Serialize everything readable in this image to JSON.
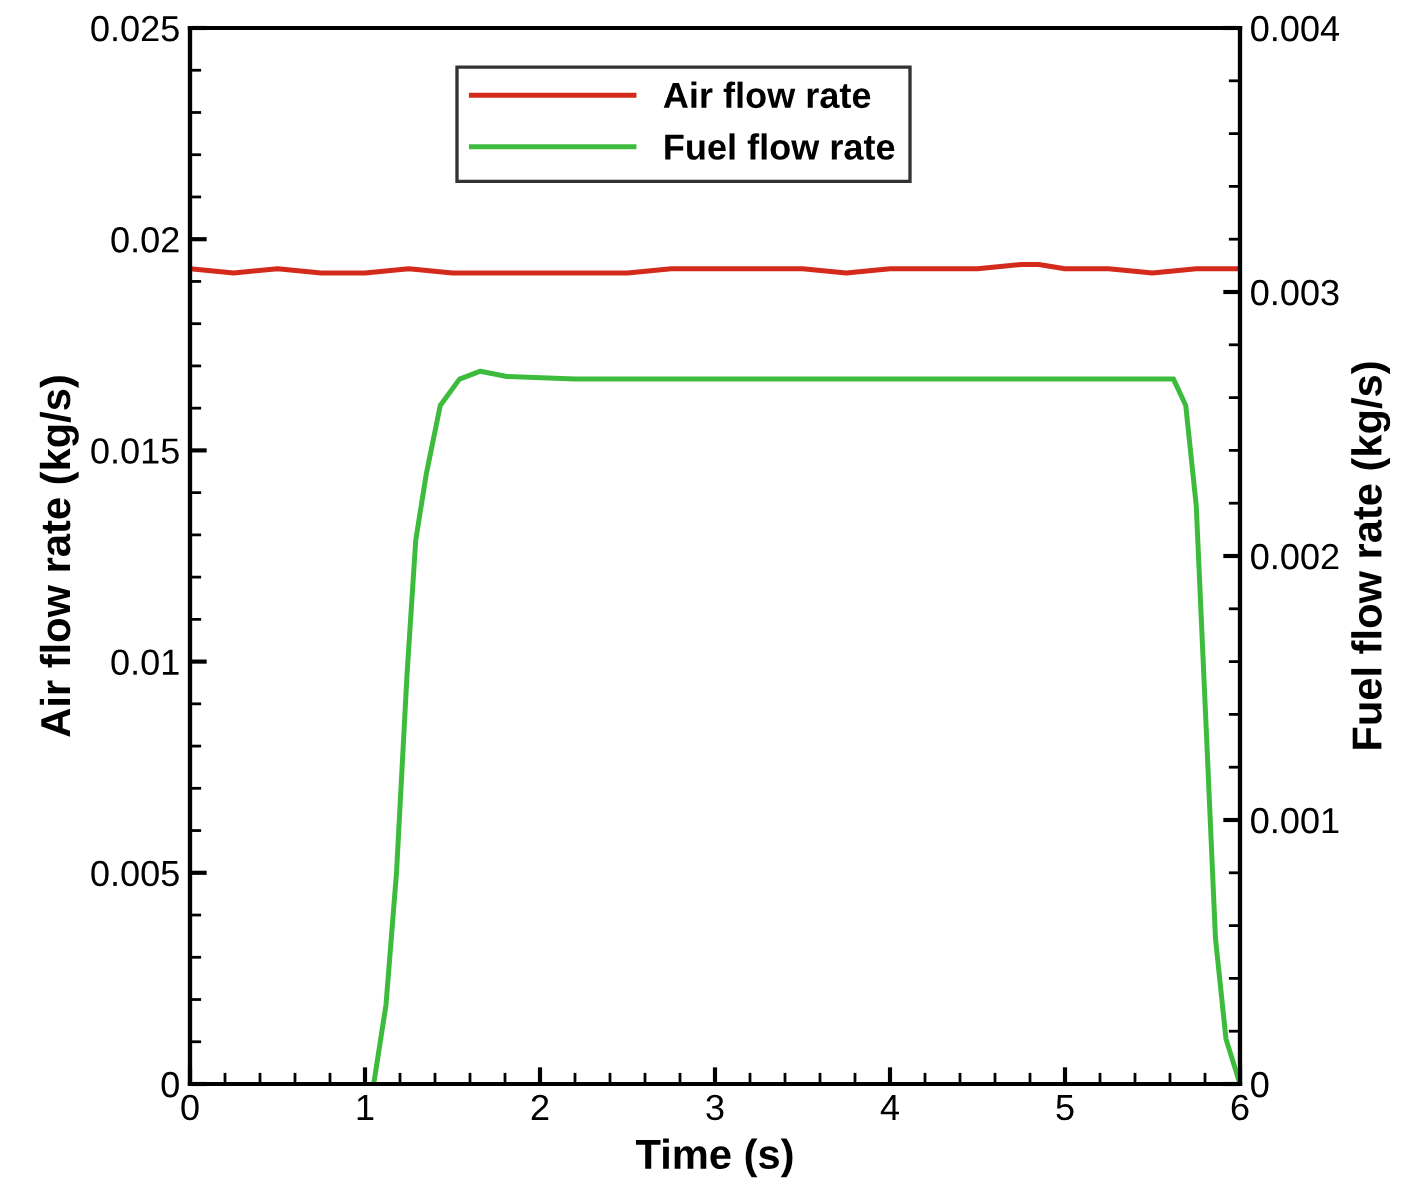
{
  "chart_data": {
    "type": "line",
    "xlabel": "Time (s)",
    "ylabel": "Air flow rate (kg/s)",
    "y2label": "Fuel flow rate (kg/s)",
    "xlim": [
      0,
      6
    ],
    "xticks": [
      0,
      1,
      2,
      3,
      4,
      5,
      6
    ],
    "ylim": [
      0,
      0.025
    ],
    "yticks": [
      0,
      0.005,
      0.01,
      0.015,
      0.02,
      0.025
    ],
    "y2lim": [
      0,
      0.004
    ],
    "y2ticks": [
      0,
      0.001,
      0.002,
      0.003,
      0.004
    ],
    "legend": "top",
    "grid": false,
    "marker": "none",
    "line_style": "solid",
    "series": [
      {
        "name": "Air flow rate",
        "color": "#d42a1c",
        "x": [
          0,
          0.25,
          0.5,
          0.75,
          1,
          1.25,
          1.5,
          1.75,
          2,
          2.25,
          2.5,
          2.75,
          3,
          3.25,
          3.5,
          3.75,
          4,
          4.25,
          4.5,
          4.75,
          4.85,
          5,
          5.25,
          5.5,
          5.75,
          6
        ],
        "values": [
          0.0193,
          0.0192,
          0.0193,
          0.0192,
          0.0192,
          0.0193,
          0.0192,
          0.0192,
          0.0192,
          0.0192,
          0.0192,
          0.0193,
          0.0193,
          0.0193,
          0.0193,
          0.0192,
          0.0193,
          0.0193,
          0.0193,
          0.0194,
          0.0194,
          0.0193,
          0.0193,
          0.0192,
          0.0193,
          0.0193
        ]
      },
      {
        "name": "Fuel flow rate",
        "color": "#3dbb3d",
        "axis": "y2",
        "x": [
          1.05,
          1.12,
          1.18,
          1.24,
          1.29,
          1.35,
          1.43,
          1.54,
          1.66,
          1.81,
          2.2,
          2.8,
          3.4,
          4.0,
          4.6,
          5.2,
          5.62,
          5.69,
          5.75,
          5.81,
          5.86,
          5.92,
          6.0
        ],
        "values": [
          0,
          0.0003,
          0.0008,
          0.00155,
          0.00206,
          0.00231,
          0.00257,
          0.00267,
          0.0027,
          0.00268,
          0.00267,
          0.00267,
          0.00267,
          0.00267,
          0.00267,
          0.00267,
          0.00267,
          0.00257,
          0.00219,
          0.0013,
          0.00055,
          0.00017,
          0
        ]
      }
    ]
  }
}
